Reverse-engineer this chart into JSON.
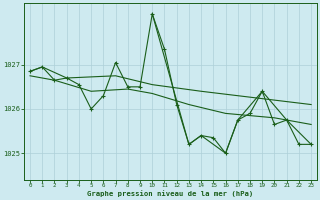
{
  "title": "Graphe pression niveau de la mer (hPa)",
  "background_color": "#ceeaf0",
  "plot_bg_color": "#ceeaf0",
  "grid_color": "#aed0d8",
  "line_color": "#1a5e1a",
  "xlim": [
    -0.5,
    23.5
  ],
  "ylim": [
    1024.4,
    1028.4
  ],
  "yticks": [
    1025,
    1026,
    1027
  ],
  "xticks": [
    0,
    1,
    2,
    3,
    4,
    5,
    6,
    7,
    8,
    9,
    10,
    11,
    12,
    13,
    14,
    15,
    16,
    17,
    18,
    19,
    20,
    21,
    22,
    23
  ],
  "series": [
    {
      "x": [
        0,
        1,
        2,
        3,
        4,
        5,
        6,
        7,
        8,
        9,
        10,
        11,
        12,
        13,
        14,
        15,
        16,
        17,
        18,
        19,
        20,
        21,
        22,
        23
      ],
      "y": [
        1026.85,
        1026.95,
        1026.65,
        1026.7,
        1026.55,
        1026.0,
        1026.3,
        1027.05,
        1026.5,
        1026.5,
        1028.15,
        1027.35,
        1026.1,
        1025.2,
        1025.4,
        1025.35,
        1025.0,
        1025.75,
        1025.9,
        1026.4,
        1025.65,
        1025.75,
        1025.2,
        1025.2
      ]
    },
    {
      "x": [
        0,
        1,
        3,
        7,
        10,
        14,
        23
      ],
      "y": [
        1026.85,
        1026.95,
        1026.7,
        1026.75,
        1026.55,
        1026.4,
        1026.1
      ]
    },
    {
      "x": [
        0,
        2,
        5,
        8,
        10,
        13,
        16,
        20,
        23
      ],
      "y": [
        1026.75,
        1026.65,
        1026.4,
        1026.45,
        1026.35,
        1026.1,
        1025.9,
        1025.8,
        1025.65
      ]
    },
    {
      "x": [
        10,
        13,
        14,
        16,
        17,
        19,
        21,
        23
      ],
      "y": [
        1028.15,
        1025.2,
        1025.4,
        1025.0,
        1025.75,
        1026.4,
        1025.75,
        1025.2
      ]
    }
  ]
}
